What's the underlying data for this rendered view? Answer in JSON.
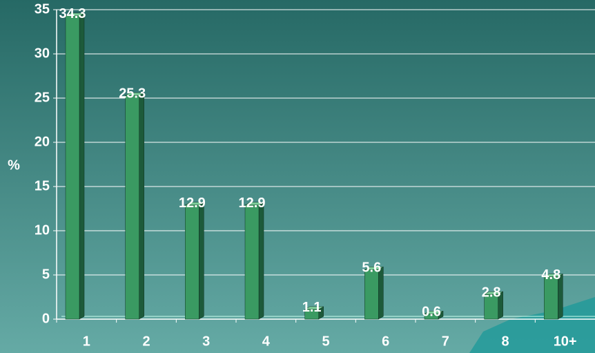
{
  "chart_data": {
    "type": "bar3d",
    "y_label": "%",
    "categories": [
      "1",
      "2",
      "3",
      "4",
      "5",
      "6",
      "7",
      "8",
      "10+"
    ],
    "values": [
      34.3,
      25.3,
      12.9,
      12.9,
      1.1,
      5.6,
      0.6,
      2.8,
      4.8
    ],
    "color": "#3a9a62",
    "ylim": [
      0,
      35
    ],
    "yticks": [
      0,
      5,
      10,
      15,
      20,
      25,
      30,
      35
    ],
    "grid": true
  }
}
